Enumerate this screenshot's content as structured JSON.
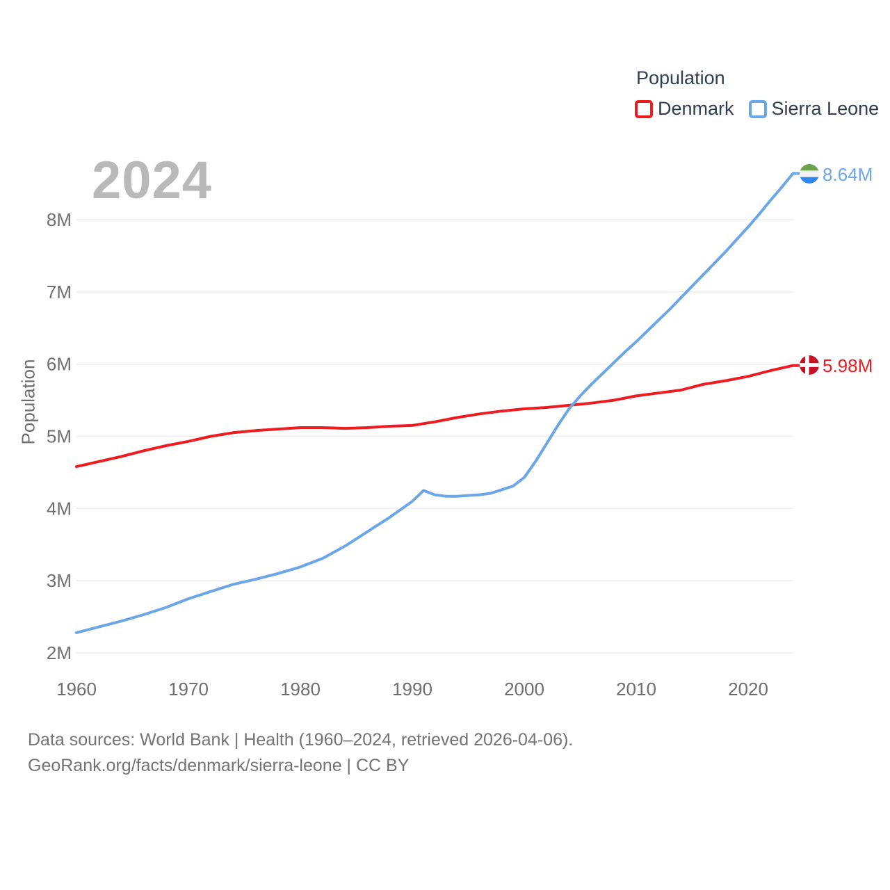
{
  "watermark": "2024",
  "legend": {
    "title": "Population",
    "items": [
      {
        "label": "Denmark",
        "color": "#ee1c21"
      },
      {
        "label": "Sierra Leone",
        "color": "#6ba6e7"
      }
    ]
  },
  "end_labels": {
    "sierra_leone": {
      "value": "8.64M"
    },
    "denmark": {
      "value": "5.98M"
    }
  },
  "flag_colors": {
    "sierra_leone": {
      "green": "#6aa34c",
      "white": "#f2f2f2",
      "blue": "#2e87f0"
    },
    "denmark": {
      "red": "#c81025",
      "cross": "#ffffff"
    }
  },
  "footer": {
    "line1": "Data sources: World Bank | Health (1960–2024, retrieved 2026-04-06).",
    "line2": "GeoRank.org/facts/denmark/sierra-leone | CC BY"
  },
  "chart_data": {
    "type": "line",
    "title": "Population",
    "xlabel": "",
    "ylabel": "Population",
    "unit": "millions of people",
    "x_range": [
      1960,
      2024
    ],
    "ylim": [
      2,
      9
    ],
    "grid": "horizontal",
    "legend_position": "top-right",
    "x_ticks": [
      1960,
      1970,
      1980,
      1990,
      2000,
      2010,
      2020
    ],
    "y_ticks": [
      {
        "label": "2M",
        "value": 2
      },
      {
        "label": "3M",
        "value": 3
      },
      {
        "label": "4M",
        "value": 4
      },
      {
        "label": "5M",
        "value": 5
      },
      {
        "label": "6M",
        "value": 6
      },
      {
        "label": "7M",
        "value": 7
      },
      {
        "label": "8M",
        "value": 8
      }
    ],
    "series": [
      {
        "name": "Denmark",
        "color": "#ee1c21",
        "end_value_label": "5.98M",
        "x": [
          1960,
          1962,
          1964,
          1966,
          1968,
          1970,
          1972,
          1974,
          1976,
          1978,
          1980,
          1982,
          1984,
          1986,
          1988,
          1990,
          1992,
          1994,
          1996,
          1998,
          2000,
          2002,
          2004,
          2006,
          2008,
          2010,
          2012,
          2014,
          2016,
          2018,
          2020,
          2022,
          2024
        ],
        "values": [
          4.58,
          4.65,
          4.72,
          4.8,
          4.87,
          4.93,
          5.0,
          5.05,
          5.08,
          5.1,
          5.12,
          5.12,
          5.11,
          5.12,
          5.14,
          5.15,
          5.2,
          5.26,
          5.31,
          5.35,
          5.38,
          5.4,
          5.43,
          5.46,
          5.5,
          5.56,
          5.6,
          5.64,
          5.72,
          5.77,
          5.83,
          5.91,
          5.98
        ]
      },
      {
        "name": "Sierra Leone",
        "color": "#6ba6e7",
        "end_value_label": "8.64M",
        "x": [
          1960,
          1962,
          1964,
          1966,
          1968,
          1970,
          1972,
          1974,
          1976,
          1978,
          1980,
          1982,
          1984,
          1986,
          1988,
          1990,
          1991,
          1992,
          1993,
          1994,
          1995,
          1996,
          1997,
          1998,
          1999,
          2000,
          2001,
          2002,
          2003,
          2004,
          2005,
          2006,
          2007,
          2008,
          2009,
          2010,
          2011,
          2012,
          2013,
          2014,
          2015,
          2016,
          2017,
          2018,
          2019,
          2020,
          2021,
          2022,
          2023,
          2024
        ],
        "values": [
          2.28,
          2.36,
          2.44,
          2.53,
          2.63,
          2.75,
          2.85,
          2.95,
          3.02,
          3.1,
          3.19,
          3.31,
          3.48,
          3.68,
          3.88,
          4.1,
          4.25,
          4.19,
          4.17,
          4.17,
          4.18,
          4.19,
          4.21,
          4.26,
          4.31,
          4.43,
          4.65,
          4.9,
          5.15,
          5.38,
          5.56,
          5.72,
          5.87,
          6.02,
          6.17,
          6.31,
          6.46,
          6.61,
          6.76,
          6.92,
          7.08,
          7.24,
          7.4,
          7.56,
          7.73,
          7.9,
          8.08,
          8.27,
          8.45,
          8.64
        ]
      }
    ]
  }
}
